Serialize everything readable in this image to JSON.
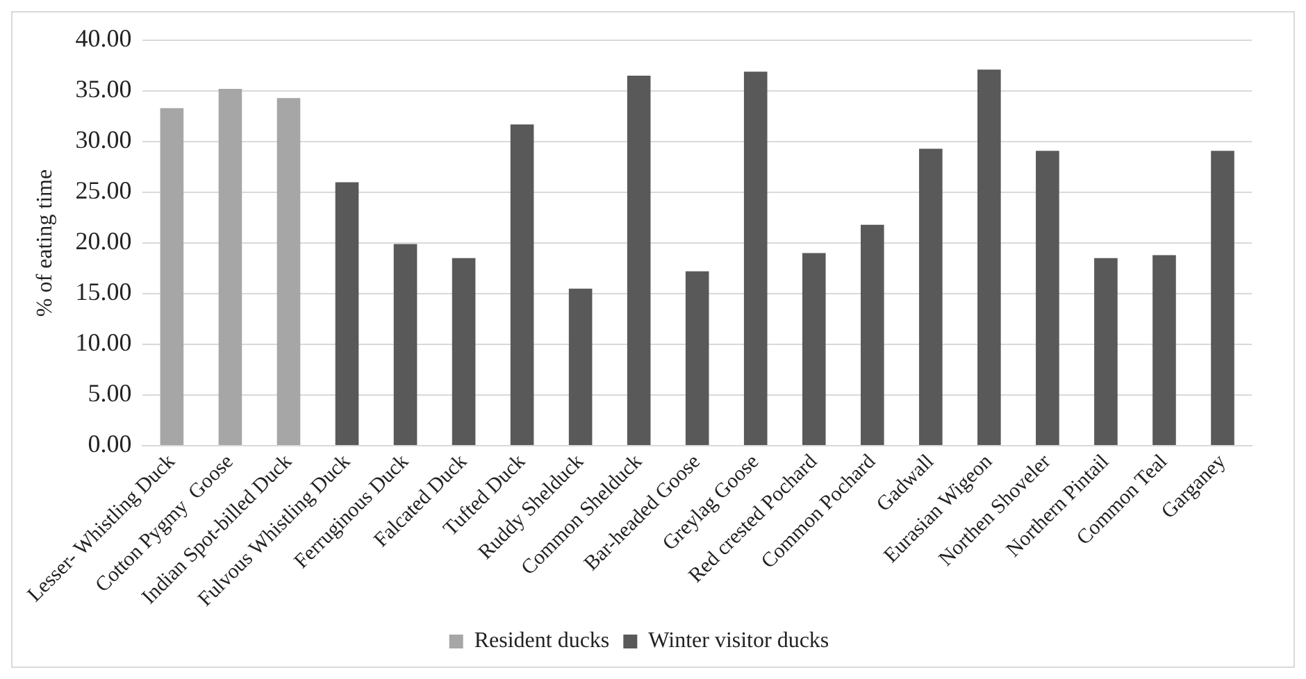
{
  "chart_data": {
    "type": "bar",
    "ylabel": "% of eating time",
    "categories": [
      "Lesser- Whistling Duck",
      "Cotton Pygmy  Goose",
      "Indian Spot-billed Duck",
      "Fulvous Whistling Duck",
      "Ferruginous Duck",
      "Falcated Duck",
      "Tufted Duck",
      "Ruddy Shelduck",
      "Common Shelduck",
      "Bar-headed Goose",
      "Greylag Goose",
      "Red crested Pochard",
      "Common Pochard",
      "Gadwall",
      "Eurasian Wigeon",
      "Northen Shoveler",
      "Northern Pintail",
      "Common Teal",
      "Garganey"
    ],
    "series": [
      {
        "name": "Resident ducks",
        "color": "#a6a6a6",
        "values": [
          33.3,
          35.2,
          34.3,
          null,
          null,
          null,
          null,
          null,
          null,
          null,
          null,
          null,
          null,
          null,
          null,
          null,
          null,
          null,
          null
        ]
      },
      {
        "name": "Winter visitor ducks",
        "color": "#595959",
        "values": [
          null,
          null,
          null,
          26.0,
          19.9,
          18.5,
          31.7,
          15.5,
          36.5,
          17.2,
          36.9,
          19.0,
          21.8,
          29.3,
          37.1,
          29.1,
          18.5,
          18.8,
          29.1
        ]
      }
    ],
    "ylim": [
      0,
      40
    ],
    "yticks": [
      {
        "value": 0,
        "label": "0.00"
      },
      {
        "value": 5,
        "label": "5.00"
      },
      {
        "value": 10,
        "label": "10.00"
      },
      {
        "value": 15,
        "label": "15.00"
      },
      {
        "value": 20,
        "label": "20.00"
      },
      {
        "value": 25,
        "label": "25.00"
      },
      {
        "value": 30,
        "label": "30.00"
      },
      {
        "value": 35,
        "label": "35.00"
      },
      {
        "value": 40,
        "label": "40.00"
      }
    ],
    "grid": "y",
    "legend": "bottom"
  }
}
